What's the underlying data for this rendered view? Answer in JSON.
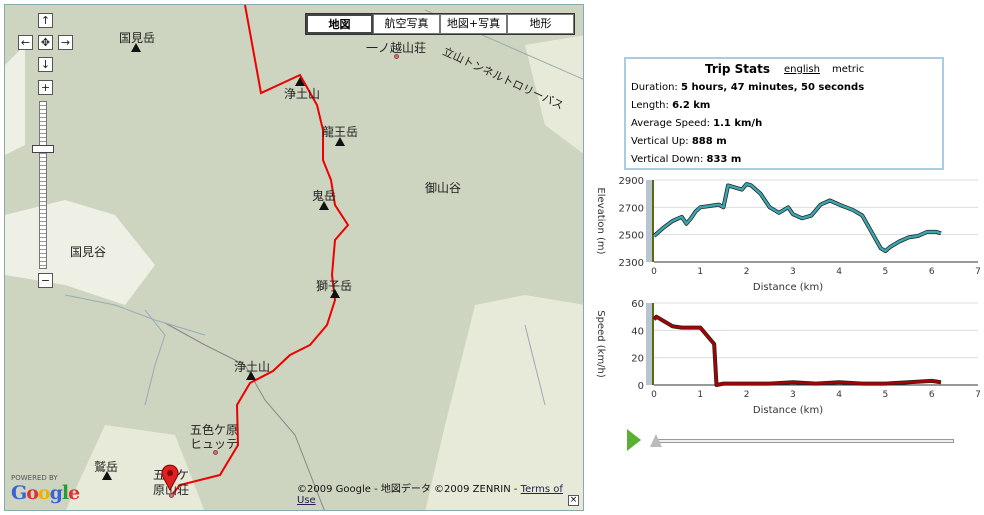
{
  "map": {
    "types": [
      "地図",
      "航空写真",
      "地図+写真",
      "地形"
    ],
    "active_type": "地図",
    "labels": {
      "kunimidake": "国見岳",
      "ichinokoshi": "一ノ越山荘",
      "tunnel": "立山トンネルトロリーバス",
      "jodosan_top": "浄土山",
      "ryuodake": "龍王岳",
      "onidake": "鬼岳",
      "gosandani": "御山谷",
      "kunimidani": "国見谷",
      "shishidake": "獅子岳",
      "jodosan_bottom": "浄土山",
      "goshiki_hutte_1": "五色ケ原",
      "goshiki_hutte_2": "ヒュッテ",
      "washidake": "鷲岳",
      "goshiki_sanso_1": "五色ケ",
      "goshiki_sanso_2": "原山荘"
    },
    "copyright": "©2009 Google - 地図データ ©2009 ZENRIN - ",
    "terms": "Terms of Use",
    "powered_by": "POWERED BY",
    "google": "Google"
  },
  "stats": {
    "title": "Trip Stats",
    "english": "english",
    "metric": "metric",
    "rows": [
      {
        "label": "Duration:",
        "value": "5 hours, 47 minutes, 50 seconds"
      },
      {
        "label": "Length:",
        "value": "6.2 km"
      },
      {
        "label": "Average Speed:",
        "value": "1.1 km/h"
      },
      {
        "label": "Vertical Up:",
        "value": "888 m"
      },
      {
        "label": "Vertical Down:",
        "value": "833 m"
      }
    ]
  },
  "chart_data": [
    {
      "type": "line",
      "ylabel": "Elevation (m)",
      "xlabel": "Distance (km)",
      "xlim": [
        0,
        7
      ],
      "ylim": [
        2300,
        2900
      ],
      "yticks": [
        2300,
        2500,
        2700,
        2900
      ],
      "xticks": [
        0,
        1,
        2,
        3,
        4,
        5,
        6,
        7
      ],
      "color": "#3aa6b0",
      "x": [
        0,
        0.2,
        0.4,
        0.6,
        0.7,
        0.8,
        0.9,
        1.0,
        1.2,
        1.4,
        1.5,
        1.6,
        1.7,
        1.9,
        2.0,
        2.1,
        2.3,
        2.5,
        2.7,
        2.9,
        3.0,
        3.2,
        3.4,
        3.6,
        3.8,
        4.0,
        4.3,
        4.5,
        4.7,
        4.9,
        5.0,
        5.1,
        5.3,
        5.5,
        5.7,
        5.9,
        6.1,
        6.2
      ],
      "y": [
        2490,
        2550,
        2600,
        2630,
        2580,
        2620,
        2670,
        2700,
        2710,
        2720,
        2700,
        2860,
        2850,
        2830,
        2870,
        2860,
        2800,
        2700,
        2660,
        2700,
        2650,
        2620,
        2640,
        2720,
        2750,
        2720,
        2680,
        2640,
        2520,
        2400,
        2380,
        2410,
        2450,
        2480,
        2490,
        2520,
        2520,
        2510
      ]
    },
    {
      "type": "line",
      "ylabel": "Speed (km/h)",
      "xlabel": "Distance (km)",
      "xlim": [
        0,
        7
      ],
      "ylim": [
        0,
        60
      ],
      "yticks": [
        0,
        20,
        40,
        60
      ],
      "xticks": [
        0,
        1,
        2,
        3,
        4,
        5,
        6,
        7
      ],
      "color": "#aa0000",
      "x": [
        0,
        0.05,
        0.4,
        0.6,
        1.0,
        1.3,
        1.35,
        1.5,
        2.0,
        2.5,
        3.0,
        3.5,
        4.0,
        4.5,
        5.0,
        5.5,
        6.0,
        6.2
      ],
      "y": [
        48,
        50,
        43,
        42,
        42,
        30,
        0,
        1,
        1,
        1,
        2,
        1,
        2,
        1,
        1,
        2,
        3,
        2
      ]
    }
  ]
}
